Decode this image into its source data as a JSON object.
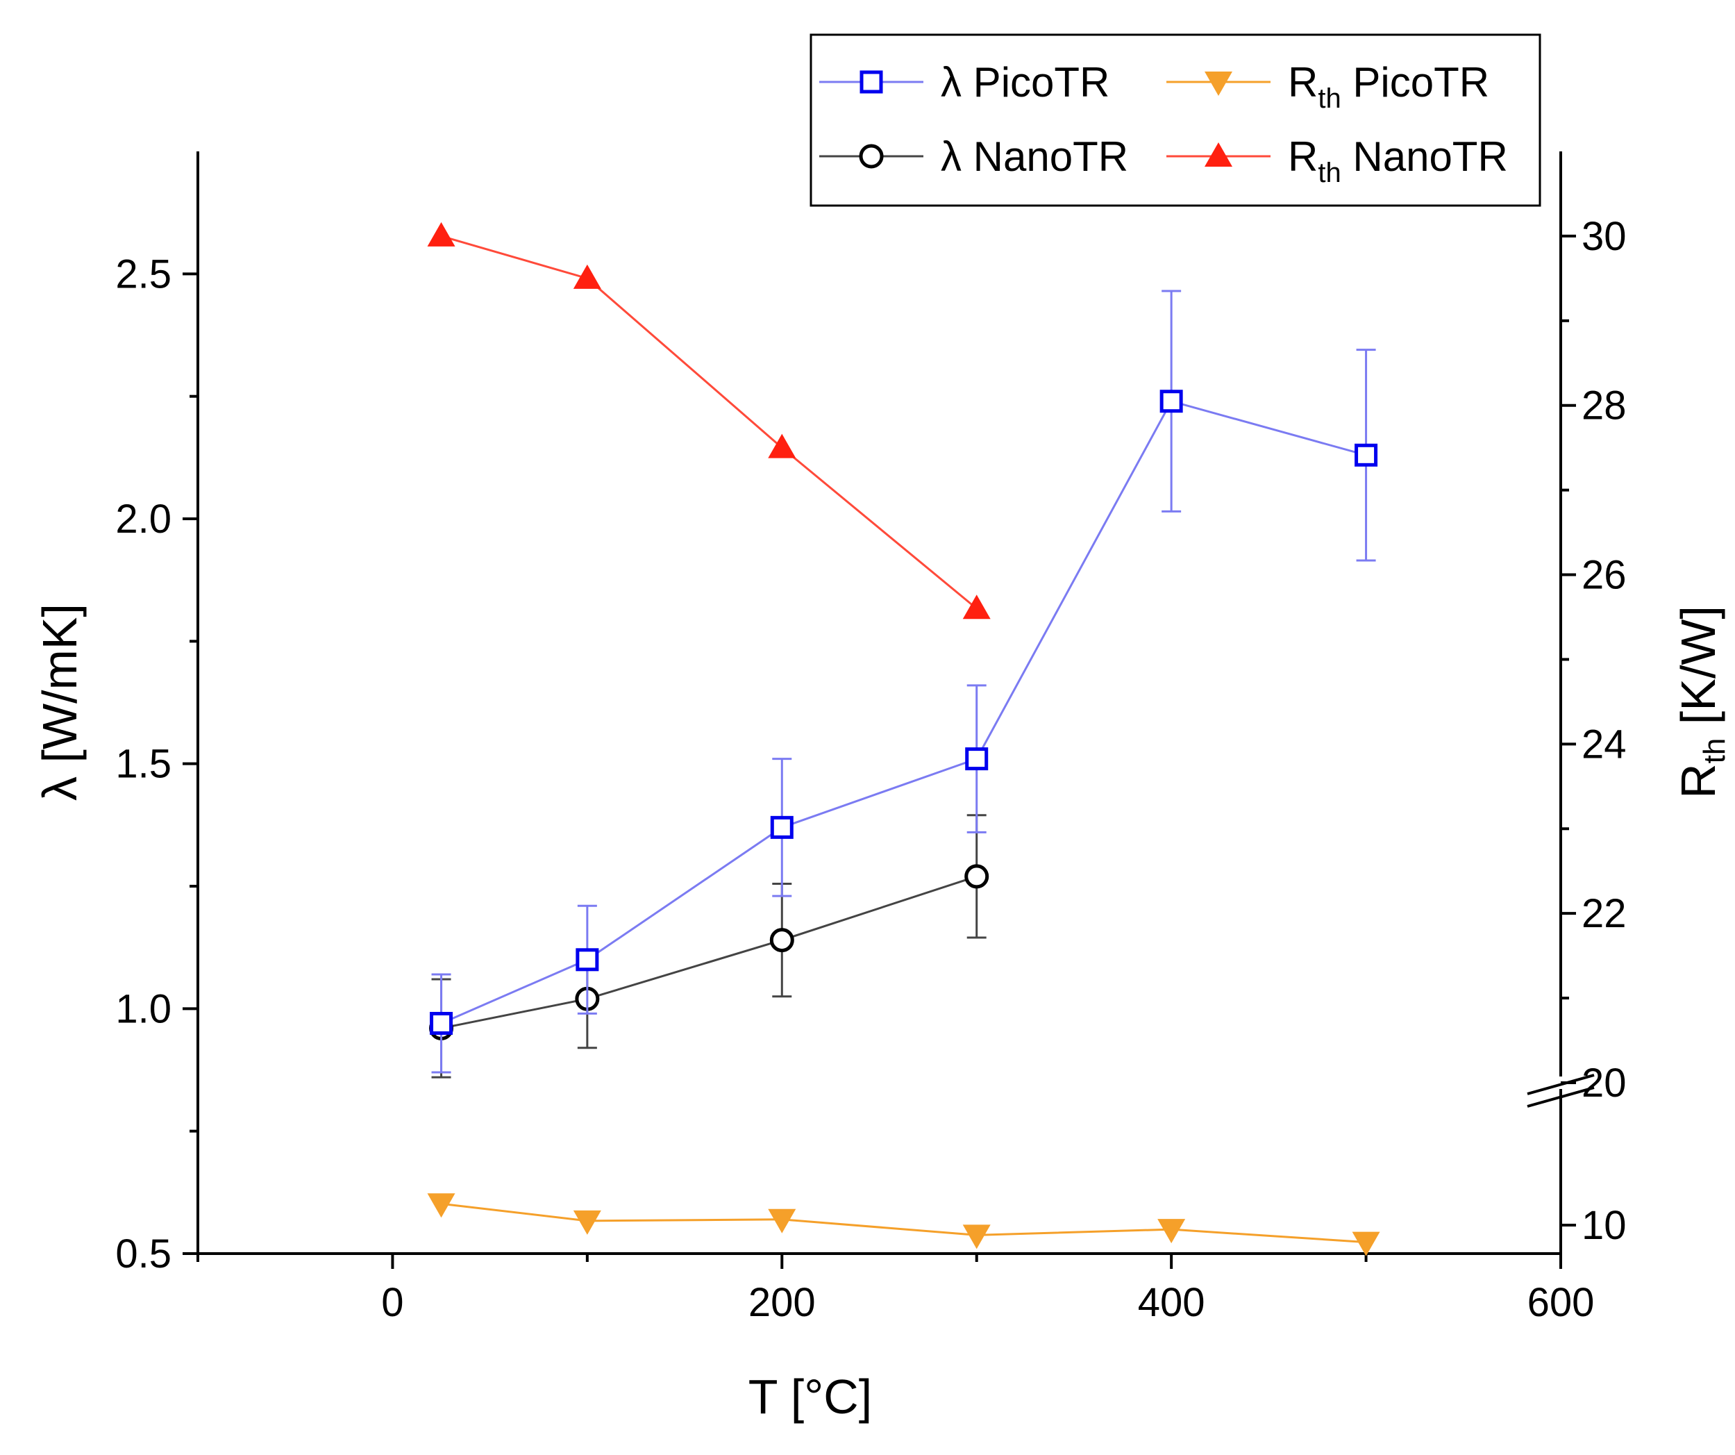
{
  "chart_data": {
    "type": "line",
    "xlabel": "T [°C]",
    "xlim": [
      -100,
      600
    ],
    "x_ticks": [
      0,
      200,
      400,
      600
    ],
    "x_tick_labels": [
      "0",
      "200",
      "400",
      "600"
    ],
    "ylabel_left": {
      "main": "λ [W/mK]"
    },
    "ylim_left": [
      0.5,
      2.75
    ],
    "y_ticks_left": [
      0.5,
      1.0,
      1.5,
      2.0,
      2.5
    ],
    "y_tick_labels_left": [
      "0.5",
      "1.0",
      "1.5",
      "2.0",
      "2.5"
    ],
    "ylabel_right": {
      "main": "R",
      "sub": "th",
      "rest": " [K/W]"
    },
    "y_right_segments": [
      {
        "range": [
          8,
          20
        ]
      },
      {
        "range": [
          20,
          31
        ]
      }
    ],
    "y_ticks_right": [
      10,
      20,
      22,
      24,
      26,
      28,
      30
    ],
    "y_tick_labels_right": [
      "10",
      "20",
      "22",
      "24",
      "26",
      "28",
      "30"
    ],
    "axis_break_value": 20,
    "legend_position": "top-right",
    "series": [
      {
        "name": "λ PicoTR",
        "legend_main": "λ PicoTR",
        "axis": "left",
        "marker": "open-square",
        "color": "#0000ee",
        "line_color": "#7b7bf2",
        "x": [
          25,
          100,
          200,
          300,
          400,
          500
        ],
        "y": [
          0.97,
          1.1,
          1.37,
          1.51,
          2.24,
          2.13
        ],
        "yerr": [
          0.1,
          0.11,
          0.14,
          0.15,
          0.225,
          0.215
        ]
      },
      {
        "name": "λ NanoTR",
        "legend_main": "λ NanoTR",
        "axis": "left",
        "marker": "open-circle",
        "color": "#000000",
        "line_color": "#444444",
        "x": [
          25,
          100,
          200,
          300
        ],
        "y": [
          0.96,
          1.02,
          1.14,
          1.27
        ],
        "yerr": [
          0.1,
          0.1,
          0.115,
          0.125
        ]
      },
      {
        "name": "Rth PicoTR",
        "legend_main": "R",
        "legend_sub": "th",
        "legend_rest": " PicoTR",
        "axis": "right",
        "marker": "down-triangle",
        "color": "#f5a02a",
        "line_color": "#f5a02a",
        "x": [
          25,
          100,
          200,
          300,
          400,
          500
        ],
        "y": [
          11.5,
          10.3,
          10.4,
          9.3,
          9.7,
          8.8
        ]
      },
      {
        "name": "Rth NanoTR",
        "legend_main": "R",
        "legend_sub": "th",
        "legend_rest": " NanoTR",
        "axis": "right",
        "marker": "up-triangle",
        "color": "#ff2010",
        "line_color": "#ff4a3a",
        "x": [
          25,
          100,
          200,
          300
        ],
        "y": [
          30.0,
          29.5,
          27.5,
          25.6
        ]
      }
    ]
  }
}
